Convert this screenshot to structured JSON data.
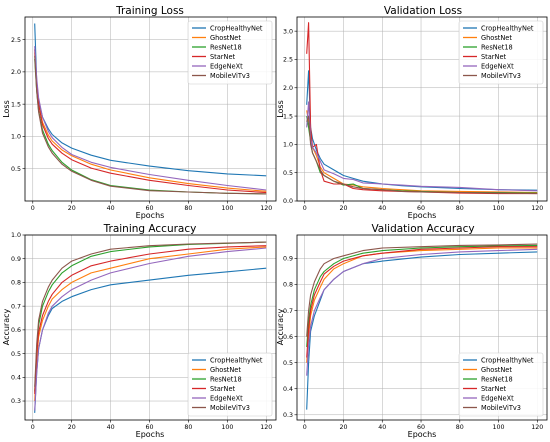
{
  "chart_data": [
    {
      "type": "line",
      "title": "Training Loss",
      "xlabel": "Epochs",
      "ylabel": "Loss",
      "xlim": [
        -4,
        125
      ],
      "ylim": [
        0,
        2.85
      ],
      "xticks": [
        0,
        20,
        40,
        60,
        80,
        100,
        120
      ],
      "yticks": [
        0.5,
        1.0,
        1.5,
        2.0,
        2.5
      ],
      "ytick_labels": [
        "0.5",
        "1.0",
        "1.5",
        "2.0",
        "2.5"
      ],
      "grid": true,
      "legend": "top-right",
      "series": [
        {
          "name": "CropHealthyNet",
          "color": "#1f77b4",
          "x": [
            1,
            2,
            3,
            5,
            8,
            10,
            15,
            20,
            30,
            40,
            60,
            80,
            100,
            120
          ],
          "y": [
            2.75,
            1.85,
            1.55,
            1.3,
            1.12,
            1.03,
            0.9,
            0.82,
            0.71,
            0.63,
            0.54,
            0.47,
            0.42,
            0.39
          ]
        },
        {
          "name": "GhostNet",
          "color": "#ff7f0e",
          "x": [
            1,
            2,
            3,
            5,
            8,
            10,
            15,
            20,
            30,
            40,
            60,
            80,
            100,
            120
          ],
          "y": [
            2.3,
            1.8,
            1.5,
            1.22,
            1.02,
            0.93,
            0.79,
            0.7,
            0.57,
            0.48,
            0.36,
            0.27,
            0.2,
            0.15
          ]
        },
        {
          "name": "ResNet18",
          "color": "#2ca02c",
          "x": [
            1,
            2,
            3,
            5,
            8,
            10,
            15,
            20,
            30,
            40,
            60,
            80,
            100,
            120
          ],
          "y": [
            2.2,
            1.7,
            1.4,
            1.1,
            0.88,
            0.78,
            0.6,
            0.48,
            0.33,
            0.24,
            0.17,
            0.14,
            0.12,
            0.11
          ]
        },
        {
          "name": "StarNet",
          "color": "#d62728",
          "x": [
            1,
            2,
            3,
            5,
            8,
            10,
            15,
            20,
            30,
            40,
            60,
            80,
            100,
            120
          ],
          "y": [
            2.35,
            1.8,
            1.5,
            1.18,
            0.97,
            0.88,
            0.74,
            0.64,
            0.51,
            0.43,
            0.32,
            0.24,
            0.17,
            0.13
          ]
        },
        {
          "name": "EdgeNeXt",
          "color": "#9467bd",
          "x": [
            1,
            2,
            3,
            5,
            8,
            10,
            15,
            20,
            30,
            40,
            60,
            80,
            100,
            120
          ],
          "y": [
            2.4,
            1.9,
            1.6,
            1.3,
            1.08,
            0.98,
            0.83,
            0.72,
            0.6,
            0.52,
            0.41,
            0.32,
            0.24,
            0.17
          ]
        },
        {
          "name": "MobileViTv3",
          "color": "#8c564b",
          "x": [
            1,
            2,
            3,
            5,
            8,
            10,
            15,
            20,
            30,
            40,
            60,
            80,
            100,
            120
          ],
          "y": [
            2.25,
            1.7,
            1.38,
            1.05,
            0.84,
            0.74,
            0.57,
            0.46,
            0.32,
            0.23,
            0.16,
            0.14,
            0.12,
            0.11
          ]
        }
      ]
    },
    {
      "type": "line",
      "title": "Validation Loss",
      "xlabel": "Epochs",
      "ylabel": "Loss",
      "xlim": [
        -4,
        125
      ],
      "ylim": [
        0,
        3.25
      ],
      "xticks": [
        0,
        20,
        40,
        60,
        80,
        100,
        120
      ],
      "yticks": [
        0.0,
        0.5,
        1.0,
        1.5,
        2.0,
        2.5,
        3.0
      ],
      "ytick_labels": [
        "0.0",
        "0.5",
        "1.0",
        "1.5",
        "2.0",
        "2.5",
        "3.0"
      ],
      "grid": true,
      "legend": "top-right",
      "series": [
        {
          "name": "CropHealthyNet",
          "color": "#1f77b4",
          "x": [
            1,
            2,
            3,
            4,
            6,
            8,
            10,
            15,
            20,
            25,
            30,
            40,
            50,
            60,
            80,
            100,
            120
          ],
          "y": [
            1.7,
            2.3,
            1.3,
            1.1,
            0.9,
            0.75,
            0.65,
            0.55,
            0.45,
            0.4,
            0.35,
            0.3,
            0.27,
            0.25,
            0.22,
            0.2,
            0.19
          ]
        },
        {
          "name": "GhostNet",
          "color": "#ff7f0e",
          "x": [
            1,
            2,
            3,
            4,
            6,
            8,
            10,
            15,
            20,
            25,
            30,
            40,
            50,
            60,
            80,
            100,
            120
          ],
          "y": [
            1.6,
            1.4,
            1.2,
            0.95,
            0.8,
            0.6,
            0.5,
            0.4,
            0.3,
            0.28,
            0.25,
            0.22,
            0.2,
            0.18,
            0.17,
            0.16,
            0.15
          ]
        },
        {
          "name": "ResNet18",
          "color": "#2ca02c",
          "x": [
            1,
            2,
            3,
            4,
            6,
            8,
            10,
            15,
            20,
            25,
            30,
            40,
            50,
            60,
            80,
            100,
            120
          ],
          "y": [
            1.5,
            1.3,
            1.05,
            0.85,
            0.7,
            0.5,
            0.45,
            0.35,
            0.28,
            0.3,
            0.22,
            0.2,
            0.18,
            0.17,
            0.15,
            0.15,
            0.14
          ]
        },
        {
          "name": "StarNet",
          "color": "#d62728",
          "x": [
            1,
            2,
            3,
            4,
            6,
            8,
            10,
            15,
            20,
            25,
            30,
            40,
            50,
            60,
            80,
            100,
            120
          ],
          "y": [
            2.6,
            3.15,
            1.3,
            0.95,
            1.0,
            0.55,
            0.35,
            0.3,
            0.3,
            0.22,
            0.2,
            0.18,
            0.17,
            0.16,
            0.14,
            0.13,
            0.13
          ]
        },
        {
          "name": "EdgeNeXt",
          "color": "#9467bd",
          "x": [
            1,
            2,
            3,
            4,
            6,
            8,
            10,
            15,
            20,
            25,
            30,
            40,
            50,
            60,
            80,
            100,
            120
          ],
          "y": [
            1.3,
            1.75,
            1.1,
            0.95,
            0.85,
            0.7,
            0.55,
            0.48,
            0.4,
            0.38,
            0.32,
            0.3,
            0.28,
            0.26,
            0.24,
            0.2,
            0.18
          ]
        },
        {
          "name": "MobileViTv3",
          "color": "#8c564b",
          "x": [
            1,
            2,
            3,
            4,
            6,
            8,
            10,
            15,
            20,
            25,
            30,
            40,
            50,
            60,
            80,
            100,
            120
          ],
          "y": [
            1.4,
            1.5,
            1.0,
            0.85,
            0.7,
            0.55,
            0.45,
            0.35,
            0.3,
            0.25,
            0.22,
            0.2,
            0.17,
            0.16,
            0.15,
            0.14,
            0.13
          ]
        }
      ]
    },
    {
      "type": "line",
      "title": "Training Accuracy",
      "xlabel": "Epochs",
      "ylabel": "Accuracy",
      "xlim": [
        -4,
        125
      ],
      "ylim": [
        0.22,
        1.0
      ],
      "xticks": [
        0,
        20,
        40,
        60,
        80,
        100,
        120
      ],
      "yticks": [
        0.3,
        0.4,
        0.5,
        0.6,
        0.7,
        0.8,
        0.9,
        1.0
      ],
      "ytick_labels": [
        "0.3",
        "0.4",
        "0.5",
        "0.6",
        "0.7",
        "0.8",
        "0.9",
        "1.0"
      ],
      "grid": true,
      "legend": "bottom-right",
      "series": [
        {
          "name": "CropHealthyNet",
          "color": "#1f77b4",
          "x": [
            1,
            2,
            3,
            5,
            8,
            10,
            15,
            20,
            30,
            40,
            60,
            80,
            100,
            120
          ],
          "y": [
            0.25,
            0.42,
            0.52,
            0.6,
            0.66,
            0.69,
            0.72,
            0.74,
            0.77,
            0.79,
            0.81,
            0.83,
            0.845,
            0.86
          ]
        },
        {
          "name": "GhostNet",
          "color": "#ff7f0e",
          "x": [
            1,
            2,
            3,
            5,
            8,
            10,
            15,
            20,
            30,
            40,
            60,
            80,
            100,
            120
          ],
          "y": [
            0.3,
            0.47,
            0.57,
            0.64,
            0.7,
            0.73,
            0.77,
            0.8,
            0.84,
            0.86,
            0.9,
            0.92,
            0.94,
            0.95
          ]
        },
        {
          "name": "ResNet18",
          "color": "#2ca02c",
          "x": [
            1,
            2,
            3,
            5,
            8,
            10,
            15,
            20,
            30,
            40,
            60,
            80,
            100,
            120
          ],
          "y": [
            0.34,
            0.52,
            0.62,
            0.7,
            0.76,
            0.79,
            0.84,
            0.87,
            0.91,
            0.93,
            0.95,
            0.96,
            0.965,
            0.97
          ]
        },
        {
          "name": "StarNet",
          "color": "#d62728",
          "x": [
            1,
            2,
            3,
            5,
            8,
            10,
            15,
            20,
            30,
            40,
            60,
            80,
            100,
            120
          ],
          "y": [
            0.33,
            0.5,
            0.59,
            0.66,
            0.72,
            0.75,
            0.8,
            0.83,
            0.87,
            0.89,
            0.92,
            0.94,
            0.95,
            0.955
          ]
        },
        {
          "name": "EdgeNeXt",
          "color": "#9467bd",
          "x": [
            1,
            2,
            3,
            5,
            8,
            10,
            15,
            20,
            30,
            40,
            60,
            80,
            100,
            120
          ],
          "y": [
            0.26,
            0.42,
            0.52,
            0.6,
            0.67,
            0.7,
            0.74,
            0.77,
            0.81,
            0.84,
            0.88,
            0.91,
            0.93,
            0.945
          ]
        },
        {
          "name": "MobileViTv3",
          "color": "#8c564b",
          "x": [
            1,
            2,
            3,
            5,
            8,
            10,
            15,
            20,
            30,
            40,
            60,
            80,
            100,
            120
          ],
          "y": [
            0.36,
            0.54,
            0.64,
            0.72,
            0.78,
            0.81,
            0.86,
            0.89,
            0.92,
            0.94,
            0.955,
            0.962,
            0.966,
            0.97
          ]
        }
      ]
    },
    {
      "type": "line",
      "title": "Validation Accuracy",
      "xlabel": "Epochs",
      "ylabel": "Accuracy",
      "xlim": [
        -4,
        125
      ],
      "ylim": [
        0.28,
        0.99
      ],
      "xticks": [
        0,
        20,
        40,
        60,
        80,
        100,
        120
      ],
      "yticks": [
        0.3,
        0.4,
        0.5,
        0.6,
        0.7,
        0.8,
        0.9
      ],
      "ytick_labels": [
        "0.3",
        "0.4",
        "0.5",
        "0.6",
        "0.7",
        "0.8",
        "0.9"
      ],
      "grid": true,
      "legend": "bottom-right",
      "series": [
        {
          "name": "CropHealthyNet",
          "color": "#1f77b4",
          "x": [
            1,
            2,
            3,
            5,
            8,
            10,
            15,
            20,
            30,
            40,
            60,
            80,
            100,
            120
          ],
          "y": [
            0.32,
            0.5,
            0.62,
            0.68,
            0.74,
            0.78,
            0.82,
            0.85,
            0.88,
            0.89,
            0.905,
            0.915,
            0.92,
            0.925
          ]
        },
        {
          "name": "GhostNet",
          "color": "#ff7f0e",
          "x": [
            1,
            2,
            3,
            5,
            8,
            10,
            15,
            20,
            30,
            40,
            60,
            80,
            100,
            120
          ],
          "y": [
            0.5,
            0.6,
            0.68,
            0.74,
            0.79,
            0.82,
            0.86,
            0.88,
            0.91,
            0.92,
            0.93,
            0.935,
            0.94,
            0.94
          ]
        },
        {
          "name": "ResNet18",
          "color": "#2ca02c",
          "x": [
            1,
            2,
            3,
            5,
            8,
            10,
            15,
            20,
            30,
            40,
            60,
            80,
            100,
            120
          ],
          "y": [
            0.56,
            0.66,
            0.72,
            0.78,
            0.83,
            0.85,
            0.88,
            0.9,
            0.92,
            0.93,
            0.94,
            0.945,
            0.948,
            0.95
          ]
        },
        {
          "name": "StarNet",
          "color": "#d62728",
          "x": [
            1,
            2,
            3,
            5,
            8,
            10,
            15,
            20,
            30,
            40,
            60,
            80,
            100,
            120
          ],
          "y": [
            0.52,
            0.63,
            0.7,
            0.76,
            0.81,
            0.84,
            0.87,
            0.89,
            0.91,
            0.92,
            0.935,
            0.94,
            0.945,
            0.945
          ]
        },
        {
          "name": "EdgeNeXt",
          "color": "#9467bd",
          "x": [
            1,
            2,
            3,
            5,
            8,
            10,
            15,
            20,
            30,
            40,
            60,
            80,
            100,
            120
          ],
          "y": [
            0.45,
            0.57,
            0.64,
            0.7,
            0.75,
            0.78,
            0.82,
            0.85,
            0.88,
            0.9,
            0.915,
            0.925,
            0.93,
            0.935
          ]
        },
        {
          "name": "MobileViTv3",
          "color": "#8c564b",
          "x": [
            1,
            2,
            3,
            5,
            8,
            10,
            15,
            20,
            30,
            40,
            60,
            80,
            100,
            120
          ],
          "y": [
            0.6,
            0.7,
            0.76,
            0.81,
            0.86,
            0.88,
            0.9,
            0.91,
            0.93,
            0.94,
            0.945,
            0.95,
            0.952,
            0.955
          ]
        }
      ]
    }
  ]
}
